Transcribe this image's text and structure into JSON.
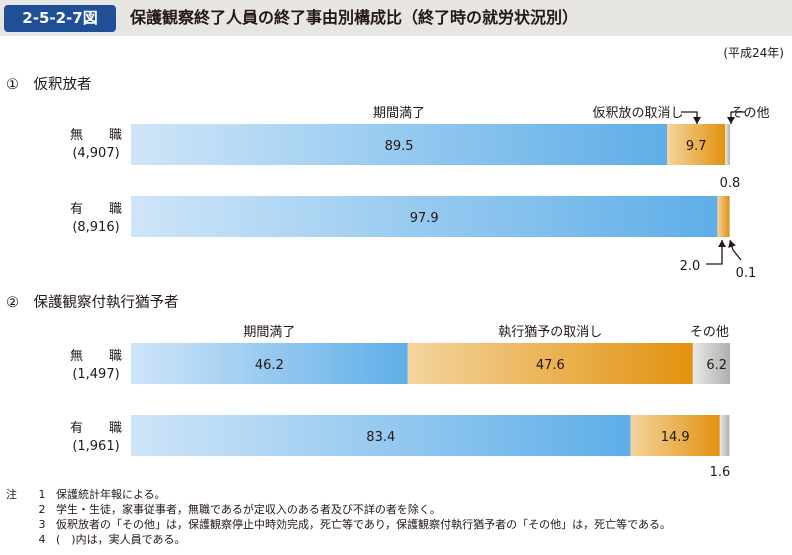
{
  "header": {
    "figure_number": "2-5-2-7図",
    "title": "保護観察終了人員の終了事由別構成比（終了時の就労状況別）"
  },
  "era": "(平成24年)",
  "sections": [
    {
      "label": "①　仮釈放者"
    },
    {
      "label": "②　保護観察付執行猶予者"
    }
  ],
  "rows": [
    {
      "name": "無　　職",
      "count": "(4,907)"
    },
    {
      "name": "有　　職",
      "count": "(8,916)"
    },
    {
      "name": "無　　職",
      "count": "(1,497)"
    },
    {
      "name": "有　　職",
      "count": "(1,961)"
    }
  ],
  "notes": [
    {
      "k": "注",
      "i": "1",
      "text": "保護統計年報による。"
    },
    {
      "k": "",
      "i": "2",
      "text": "学生・生徒，家事従事者，無職であるが定収入のある者及び不詳の者を除く。"
    },
    {
      "k": "",
      "i": "3",
      "text": "仮釈放者の「その他」は，保護観察停止中時効完成，死亡等であり，保護観察付執行猶予者の「その他」は，死亡等である。"
    },
    {
      "k": "",
      "i": "4",
      "text": "(　)内は，実人員である。"
    }
  ],
  "colors": {
    "blue_light": "#cfe5f8",
    "blue_dark": "#5eaee8",
    "orange_light": "#f4d49e",
    "orange_dark": "#e2920e",
    "gray_light": "#e8e8e6",
    "gray_dark": "#b0b0ae"
  },
  "chart_data": [
    {
      "type": "bar",
      "orientation": "horizontal",
      "stacked": "100%",
      "panel": "①　仮釈放者",
      "categories": [
        "無職 (4,907)",
        "有職 (8,916)"
      ],
      "series": [
        {
          "name": "期間満了",
          "values": [
            89.5,
            97.9
          ]
        },
        {
          "name": "仮釈放の取消し",
          "values": [
            9.7,
            2.0
          ]
        },
        {
          "name": "その他",
          "values": [
            0.8,
            0.1
          ]
        }
      ],
      "xlim": [
        0,
        100
      ]
    },
    {
      "type": "bar",
      "orientation": "horizontal",
      "stacked": "100%",
      "panel": "②　保護観察付執行猶予者",
      "categories": [
        "無職 (1,497)",
        "有職 (1,961)"
      ],
      "series": [
        {
          "name": "期間満了",
          "values": [
            46.2,
            83.4
          ]
        },
        {
          "name": "執行猶予の取消し",
          "values": [
            47.6,
            14.9
          ]
        },
        {
          "name": "その他",
          "values": [
            6.2,
            1.6
          ]
        }
      ],
      "xlim": [
        0,
        100
      ]
    }
  ]
}
